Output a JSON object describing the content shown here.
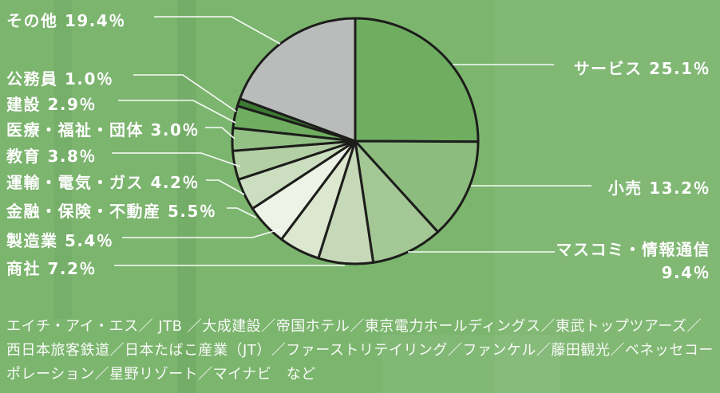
{
  "chart_data": {
    "type": "pie",
    "title": "",
    "unit": "%",
    "start": "top",
    "direction": "clockwise",
    "stroke_color": "#1d1d1b",
    "leader_line_color": "#ffffff",
    "label_color": "#ffffff",
    "background_color": "#7cb56e",
    "slices": [
      {
        "label": "サービス",
        "value": 25.1,
        "color": "#6fae61",
        "display": "サービス 25.1％"
      },
      {
        "label": "小売",
        "value": 13.2,
        "color": "#8cbc7e",
        "display": "小売 13.2％"
      },
      {
        "label": "マスコミ・情報通信",
        "value": 9.4,
        "color": "#a3c795",
        "display": "マスコミ・情報通信",
        "display2": "9.4％"
      },
      {
        "label": "商社",
        "value": 7.2,
        "color": "#c5d8b8",
        "display": "商社 7.2％"
      },
      {
        "label": "製造業",
        "value": 5.4,
        "color": "#dbe7cf",
        "display": "製造業 5.4％"
      },
      {
        "label": "金融・保険・不動産",
        "value": 5.5,
        "color": "#eef3e7",
        "display": "金融・保険・不動産 5.5％"
      },
      {
        "label": "運輸・電気・ガス",
        "value": 4.2,
        "color": "#ccdec0",
        "display": "運輸・電気・ガス 4.2％"
      },
      {
        "label": "教育",
        "value": 3.8,
        "color": "#b3cfa4",
        "display": "教育 3.8％"
      },
      {
        "label": "医療・福祉・団体",
        "value": 3.0,
        "color": "#93c085",
        "display": "医療・福祉・団体 3.0％"
      },
      {
        "label": "建設",
        "value": 2.9,
        "color": "#6fae61",
        "display": "建設 2.9％"
      },
      {
        "label": "公務員",
        "value": 1.0,
        "color": "#3d7a33",
        "display": "公務員 1.0％"
      },
      {
        "label": "その他",
        "value": 19.4,
        "color": "#b9bcba",
        "display": "その他 19.4％"
      }
    ]
  },
  "footnote": {
    "lines": [
      "エイチ・アイ・エス／ JTB ／大成建設／帝国ホテル／東京電力ホールディングス／東武トップツアーズ／",
      "西日本旅客鉄道／日本たばこ産業（JT）／ファーストリテイリング／ファンケル／藤田観光／ベネッセコー",
      "ポレーション／星野リゾート／マイナビ　など"
    ]
  }
}
